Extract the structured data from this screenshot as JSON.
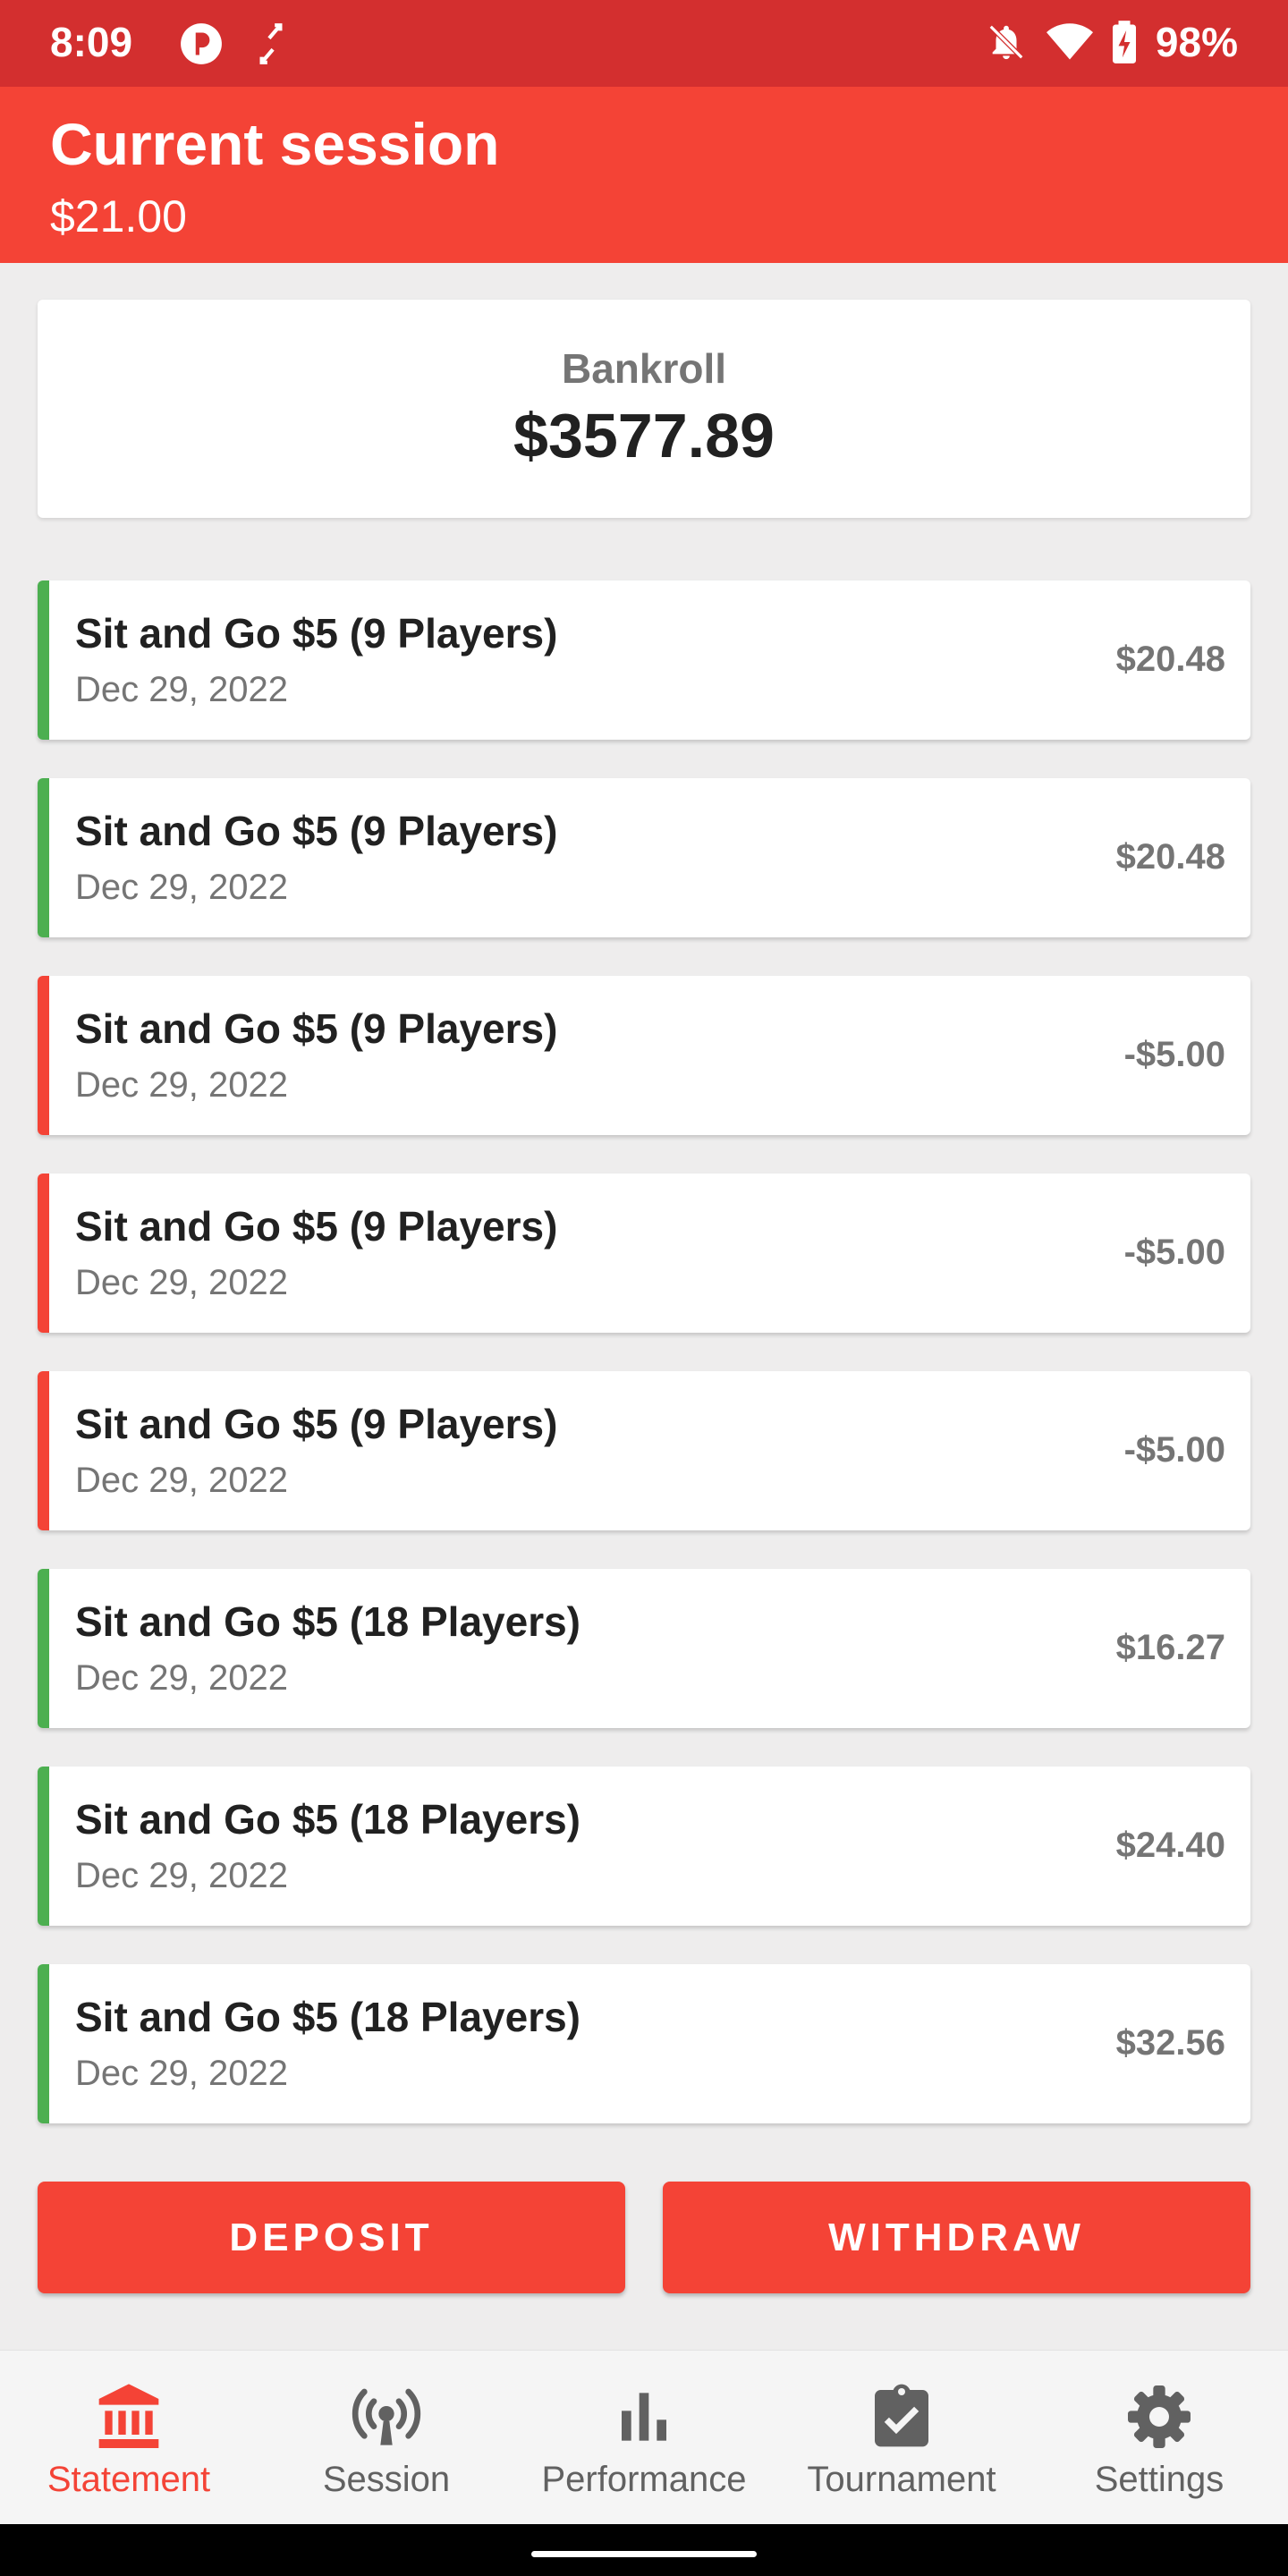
{
  "status_bar": {
    "time": "8:09",
    "battery": "98%"
  },
  "header": {
    "title": "Current session",
    "subtitle": "$21.00"
  },
  "bankroll": {
    "label": "Bankroll",
    "value": "$3577.89"
  },
  "colors": {
    "win": "#4caf50",
    "loss": "#f44336"
  },
  "sessions": [
    {
      "title": "Sit and Go $5 (9 Players)",
      "date": "Dec 29, 2022",
      "amount": "$20.48",
      "result": "win"
    },
    {
      "title": "Sit and Go $5 (9 Players)",
      "date": "Dec 29, 2022",
      "amount": "$20.48",
      "result": "win"
    },
    {
      "title": "Sit and Go $5 (9 Players)",
      "date": "Dec 29, 2022",
      "amount": "-$5.00",
      "result": "loss"
    },
    {
      "title": "Sit and Go $5 (9 Players)",
      "date": "Dec 29, 2022",
      "amount": "-$5.00",
      "result": "loss"
    },
    {
      "title": "Sit and Go $5 (9 Players)",
      "date": "Dec 29, 2022",
      "amount": "-$5.00",
      "result": "loss"
    },
    {
      "title": "Sit and Go $5 (18 Players)",
      "date": "Dec 29, 2022",
      "amount": "$16.27",
      "result": "win"
    },
    {
      "title": "Sit and Go $5 (18 Players)",
      "date": "Dec 29, 2022",
      "amount": "$24.40",
      "result": "win"
    },
    {
      "title": "Sit and Go $5 (18 Players)",
      "date": "Dec 29, 2022",
      "amount": "$32.56",
      "result": "win"
    }
  ],
  "actions": {
    "deposit": "DEPOSIT",
    "withdraw": "WITHDRAW"
  },
  "nav": {
    "active": "statement",
    "items": [
      {
        "id": "statement",
        "label": "Statement",
        "icon": "bank-icon"
      },
      {
        "id": "session",
        "label": "Session",
        "icon": "broadcast-icon"
      },
      {
        "id": "performance",
        "label": "Performance",
        "icon": "bar-chart-icon"
      },
      {
        "id": "tournament",
        "label": "Tournament",
        "icon": "clipboard-check-icon"
      },
      {
        "id": "settings",
        "label": "Settings",
        "icon": "gear-icon"
      }
    ]
  }
}
